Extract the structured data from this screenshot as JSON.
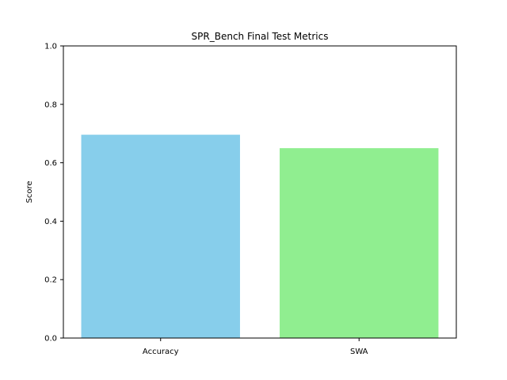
{
  "chart_data": {
    "type": "bar",
    "title": "SPR_Bench Final Test Metrics",
    "xlabel": "",
    "ylabel": "Score",
    "categories": [
      "Accuracy",
      "SWA"
    ],
    "values": [
      0.696,
      0.65
    ],
    "colors": [
      "#87ceeb",
      "#90ee90"
    ],
    "ylim": [
      0,
      1.0
    ],
    "yticks": [
      "0.0",
      "0.2",
      "0.4",
      "0.6",
      "0.8",
      "1.0"
    ],
    "grid": false,
    "legend": "none"
  }
}
